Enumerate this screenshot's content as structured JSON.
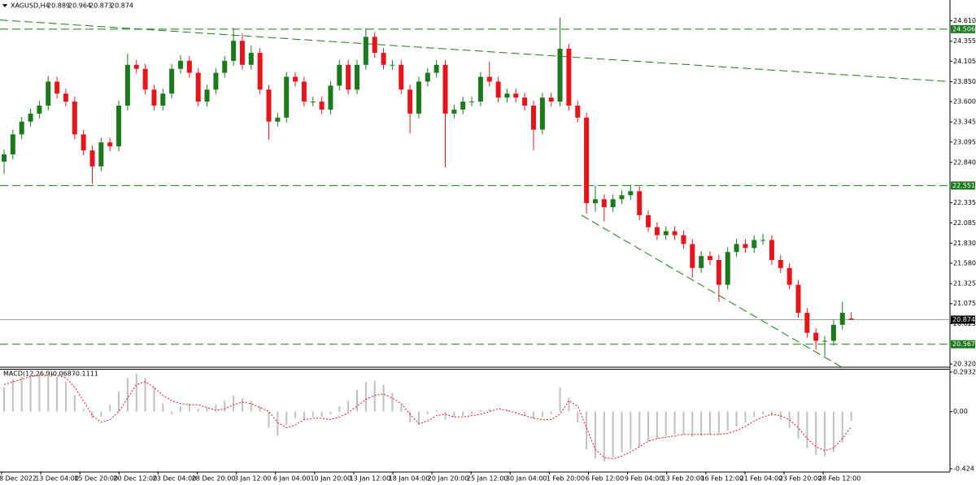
{
  "chart_data": [
    {
      "type": "candlestick",
      "symbol": "XAGUSD,H4",
      "x_labels": [
        "8 Dec 2022",
        "13 Dec 04:00",
        "15 Dec 20:00",
        "20 Dec 12:00",
        "23 Dec 04:00",
        "28 Dec 20:00",
        "3 Jan 12:00",
        "6 Jan 04:00",
        "10 Jan 20:00",
        "13 Jan 12:00",
        "18 Jan 04:00",
        "20 Jan 20:00",
        "25 Jan 12:00",
        "30 Jan 04:00",
        "1 Feb 20:00",
        "6 Feb 12:00",
        "9 Feb 04:00",
        "13 Feb 20:00",
        "16 Feb 12:00",
        "21 Feb 04:00",
        "23 Feb 20:00",
        "28 Feb 12:00"
      ],
      "open": [
        22.85,
        22.94,
        23.19,
        23.35,
        23.45,
        23.55,
        23.85,
        23.7,
        23.6,
        23.19,
        22.99,
        22.79,
        23.09,
        23.04,
        23.55,
        24.06,
        24.01,
        23.75,
        23.55,
        23.7,
        24.01,
        24.11,
        23.96,
        23.6,
        23.75,
        23.96,
        24.11,
        24.36,
        24.06,
        24.21,
        23.75,
        23.35,
        23.4,
        23.91,
        23.85,
        23.6,
        23.6,
        23.5,
        23.8,
        24.06,
        23.75,
        24.06,
        24.41,
        24.21,
        24.06,
        24.06,
        23.75,
        23.45,
        23.85,
        23.96,
        24.06,
        23.45,
        23.5,
        23.6,
        23.6,
        23.91,
        23.85,
        23.65,
        23.7,
        23.65,
        23.55,
        23.25,
        23.65,
        23.6,
        24.26,
        23.55,
        23.4,
        22.33,
        22.38,
        22.28,
        22.38,
        22.43,
        22.48,
        22.18,
        22.03,
        21.93,
        21.98,
        21.93,
        21.82,
        21.52,
        21.67,
        21.62,
        21.31,
        21.72,
        21.82,
        21.77,
        21.87,
        21.87,
        21.62,
        21.52,
        21.31,
        20.96,
        20.71,
        20.61,
        20.61,
        20.81,
        20.889
      ],
      "high": [
        23.0,
        23.25,
        23.41,
        23.51,
        23.61,
        23.92,
        23.91,
        23.76,
        23.66,
        23.25,
        23.05,
        23.15,
        23.15,
        23.61,
        24.2,
        24.12,
        24.07,
        23.81,
        23.76,
        24.07,
        24.18,
        24.17,
        24.02,
        23.81,
        24.02,
        24.17,
        24.52,
        24.45,
        24.3,
        24.27,
        23.81,
        23.46,
        23.97,
        23.97,
        23.91,
        23.66,
        23.66,
        23.86,
        24.12,
        24.12,
        24.12,
        24.52,
        24.47,
        24.27,
        24.12,
        24.12,
        23.81,
        23.91,
        24.02,
        24.12,
        24.12,
        23.56,
        23.66,
        23.66,
        23.97,
        24.1,
        23.91,
        23.76,
        23.76,
        23.71,
        23.61,
        23.71,
        23.71,
        24.65,
        24.32,
        23.61,
        23.46,
        22.55,
        22.44,
        22.44,
        22.49,
        22.56,
        22.54,
        22.24,
        22.09,
        22.04,
        22.04,
        21.99,
        21.88,
        21.73,
        21.73,
        21.68,
        21.78,
        21.88,
        21.88,
        21.93,
        21.95,
        21.93,
        21.68,
        21.58,
        21.37,
        21.02,
        20.77,
        20.67,
        20.87,
        21.1,
        20.964
      ],
      "low": [
        22.7,
        22.88,
        23.13,
        23.29,
        23.39,
        23.49,
        23.64,
        23.54,
        23.13,
        22.93,
        22.57,
        22.73,
        22.98,
        22.98,
        23.49,
        23.95,
        23.69,
        23.49,
        23.49,
        23.64,
        23.95,
        23.9,
        23.54,
        23.54,
        23.69,
        23.9,
        24.05,
        24.0,
        24.0,
        23.69,
        23.12,
        23.29,
        23.34,
        23.79,
        23.54,
        23.54,
        23.44,
        23.44,
        23.74,
        23.69,
        23.69,
        24.0,
        24.15,
        24.0,
        24.0,
        23.69,
        23.2,
        23.39,
        23.79,
        23.9,
        22.78,
        23.39,
        23.44,
        23.54,
        23.54,
        23.79,
        23.59,
        23.59,
        23.59,
        23.49,
        22.99,
        23.19,
        23.54,
        23.54,
        23.49,
        23.34,
        22.2,
        22.22,
        22.1,
        22.22,
        22.32,
        22.37,
        22.12,
        21.97,
        21.87,
        21.87,
        21.87,
        21.76,
        21.4,
        21.46,
        21.56,
        21.1,
        21.25,
        21.66,
        21.71,
        21.71,
        21.81,
        21.56,
        21.46,
        21.25,
        20.9,
        20.65,
        20.5,
        20.42,
        20.55,
        20.75,
        20.873
      ],
      "close": [
        22.94,
        23.19,
        23.35,
        23.45,
        23.55,
        23.85,
        23.7,
        23.6,
        23.19,
        22.99,
        22.79,
        23.09,
        23.04,
        23.55,
        24.06,
        24.01,
        23.75,
        23.55,
        23.7,
        24.01,
        24.11,
        23.96,
        23.6,
        23.75,
        23.96,
        24.11,
        24.36,
        24.06,
        24.21,
        23.75,
        23.35,
        23.4,
        23.91,
        23.85,
        23.6,
        23.6,
        23.5,
        23.8,
        24.06,
        23.75,
        24.06,
        24.41,
        24.21,
        24.06,
        24.06,
        23.75,
        23.45,
        23.85,
        23.96,
        24.06,
        23.45,
        23.5,
        23.6,
        23.6,
        23.91,
        23.85,
        23.65,
        23.7,
        23.65,
        23.55,
        23.25,
        23.65,
        23.6,
        24.26,
        23.55,
        23.4,
        22.33,
        22.38,
        22.28,
        22.38,
        22.43,
        22.48,
        22.18,
        22.03,
        21.93,
        21.98,
        21.93,
        21.82,
        21.52,
        21.67,
        21.62,
        21.31,
        21.72,
        21.82,
        21.77,
        21.87,
        21.87,
        21.62,
        21.52,
        21.31,
        20.96,
        20.71,
        20.61,
        20.61,
        20.81,
        20.96,
        20.874
      ],
      "up_color": "#1b7a1b",
      "down_color": "#e8141a",
      "ylim": [
        20.28,
        24.87
      ],
      "yticks": [
        {
          "value": 24.61,
          "label": "24.610"
        },
        24.355,
        24.105,
        {
          "value": 23.85,
          "label": "23.850"
        },
        {
          "value": 23.6,
          "label": "23.600"
        },
        23.345,
        23.095,
        {
          "value": 22.84,
          "label": "22.840"
        },
        22.335,
        22.085,
        {
          "value": 21.83,
          "label": "21.830"
        },
        {
          "value": 21.58,
          "label": "21.580"
        },
        21.325,
        21.075,
        20.825,
        {
          "value": 20.32,
          "label": "20.320"
        }
      ],
      "levels": [
        24.506,
        22.551,
        20.567
      ],
      "level_color": "#1b7a1b",
      "trendlines": [
        [
          24.62,
          23.85
        ],
        [
          22.18,
          20.28
        ]
      ]
    },
    {
      "type": "macd",
      "title": "MACD(12,26,9)",
      "histogram": [
        0.18,
        0.24,
        0.26,
        0.27,
        0.27,
        0.28,
        0.26,
        0.22,
        0.12,
        0.02,
        -0.05,
        -0.04,
        0.05,
        0.15,
        0.25,
        0.28,
        0.25,
        0.18,
        0.06,
        -0.02,
        0.04,
        0.06,
        0.02,
        0.03,
        0.05,
        0.08,
        0.12,
        0.1,
        0.08,
        0.04,
        -0.12,
        -0.18,
        -0.1,
        -0.05,
        -0.06,
        -0.04,
        -0.04,
        -0.02,
        0.04,
        0.08,
        0.16,
        0.22,
        0.23,
        0.2,
        0.14,
        0.05,
        -0.08,
        -0.1,
        -0.02,
        0.01,
        -0.06,
        -0.04,
        -0.03,
        -0.02,
        0.01,
        0.02,
        0.0,
        0.01,
        -0.01,
        -0.03,
        -0.05,
        -0.04,
        -0.02,
        0.18,
        0.1,
        -0.08,
        -0.28,
        -0.35,
        -0.37,
        -0.34,
        -0.3,
        -0.28,
        -0.26,
        -0.22,
        -0.2,
        -0.18,
        -0.17,
        -0.17,
        -0.19,
        -0.18,
        -0.17,
        -0.17,
        -0.14,
        -0.11,
        -0.08,
        -0.04,
        -0.02,
        -0.03,
        -0.06,
        -0.12,
        -0.2,
        -0.27,
        -0.32,
        -0.33,
        -0.3,
        -0.23,
        -0.0687
      ],
      "signal": [
        0.2,
        0.22,
        0.24,
        0.26,
        0.27,
        0.27,
        0.27,
        0.25,
        0.18,
        0.08,
        -0.03,
        -0.08,
        -0.06,
        0.0,
        0.1,
        0.2,
        0.22,
        0.18,
        0.12,
        0.08,
        0.06,
        0.05,
        0.05,
        0.03,
        0.01,
        0.02,
        0.05,
        0.07,
        0.06,
        0.03,
        0.0,
        -0.08,
        -0.12,
        -0.1,
        -0.06,
        -0.05,
        -0.05,
        -0.06,
        -0.04,
        -0.01,
        0.04,
        0.09,
        0.12,
        0.13,
        0.1,
        0.06,
        -0.02,
        -0.09,
        -0.07,
        -0.03,
        -0.02,
        -0.04,
        -0.04,
        -0.03,
        -0.02,
        0.0,
        0.02,
        0.01,
        -0.01,
        -0.03,
        -0.05,
        -0.06,
        -0.06,
        -0.02,
        0.08,
        0.04,
        -0.12,
        -0.28,
        -0.34,
        -0.35,
        -0.33,
        -0.3,
        -0.26,
        -0.22,
        -0.2,
        -0.19,
        -0.18,
        -0.17,
        -0.17,
        -0.17,
        -0.17,
        -0.17,
        -0.16,
        -0.14,
        -0.11,
        -0.07,
        -0.04,
        -0.02,
        -0.03,
        -0.06,
        -0.12,
        -0.2,
        -0.26,
        -0.29,
        -0.27,
        -0.2,
        -0.1111
      ],
      "histogram_color": "#c0c0c0",
      "signal_color": "#e8141a",
      "ylim": [
        -0.448,
        0.311
      ],
      "yticks": [
        0.2932,
        {
          "value": 0,
          "label": "0.00"
        },
        -0.424
      ]
    }
  ]
}
